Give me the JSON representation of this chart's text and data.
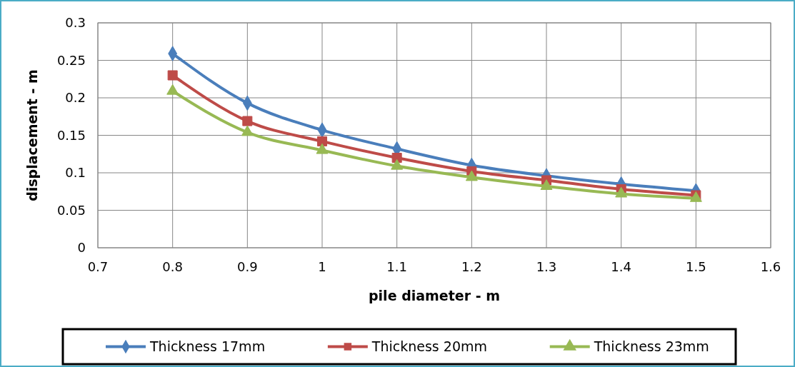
{
  "chart_data": {
    "type": "line",
    "xlabel": "pile diameter - m",
    "ylabel": "displacement - m",
    "x": [
      0.8,
      0.9,
      1.0,
      1.1,
      1.2,
      1.3,
      1.4,
      1.5
    ],
    "series": [
      {
        "name": "Thickness 17mm",
        "color": "#4a7ebb",
        "marker": "diamond",
        "values": [
          0.259,
          0.193,
          0.157,
          0.132,
          0.11,
          0.096,
          0.085,
          0.076
        ]
      },
      {
        "name": "Thickness 20mm",
        "color": "#be4b48",
        "marker": "square",
        "values": [
          0.23,
          0.169,
          0.142,
          0.12,
          0.102,
          0.09,
          0.078,
          0.07
        ]
      },
      {
        "name": "Thickness 23mm",
        "color": "#98b954",
        "marker": "triangle",
        "values": [
          0.209,
          0.154,
          0.13,
          0.109,
          0.094,
          0.082,
          0.072,
          0.066
        ]
      }
    ],
    "xlim": [
      0.7,
      1.6
    ],
    "xticks": [
      0.7,
      0.8,
      0.9,
      1,
      1.1,
      1.2,
      1.3,
      1.4,
      1.5,
      1.6
    ],
    "ylim": [
      0,
      0.3
    ],
    "yticks": [
      0,
      0.05,
      0.1,
      0.15,
      0.2,
      0.25,
      0.3
    ],
    "grid": true,
    "legend": "bottom",
    "line_style": "solid"
  }
}
